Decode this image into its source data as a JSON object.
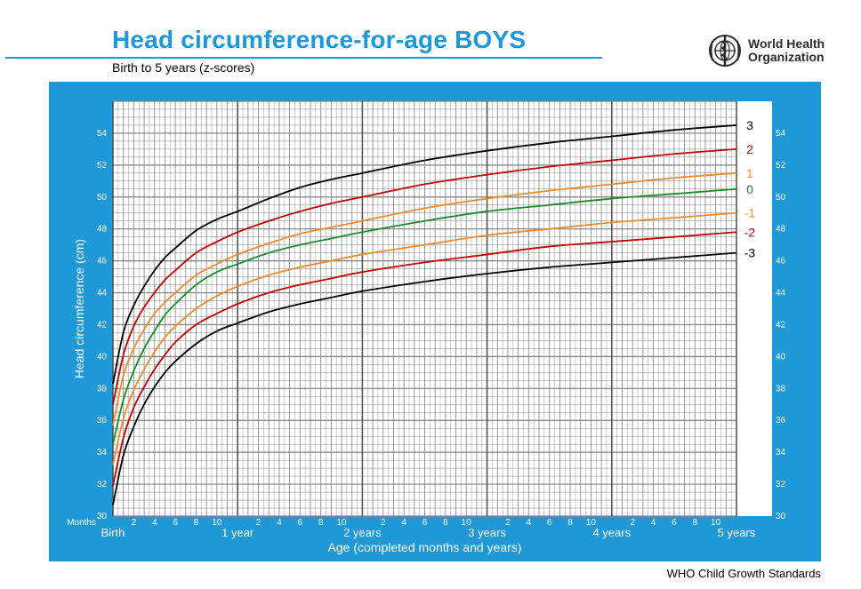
{
  "header": {
    "title": "Head circumference-for-age  BOYS",
    "subtitle": "Birth to 5 years (z-scores)",
    "org_line1": "World Health",
    "org_line2": "Organization",
    "logo_icon": "who-emblem-icon"
  },
  "footer": {
    "text": "WHO Child Growth Standards"
  },
  "colors": {
    "panel": "#1f98d8",
    "grid": "#7f7f7f",
    "z3": "#000000",
    "z2": "#c00000",
    "z1": "#f08a2a",
    "z0": "#1a8a2a"
  },
  "chart_data": {
    "type": "line",
    "title": "Head circumference-for-age  BOYS",
    "subtitle": "Birth to 5 years (z-scores)",
    "xlabel": "Age (completed months and years)",
    "ylabel": "Head circumference (cm)",
    "x_unit": "months",
    "xlim": [
      0,
      60
    ],
    "ylim": [
      30,
      56
    ],
    "y_ticks": [
      30,
      32,
      34,
      36,
      38,
      40,
      42,
      44,
      46,
      48,
      50,
      52,
      54
    ],
    "months_label": "Months",
    "x_year_labels": [
      {
        "month": 0,
        "label": "Birth"
      },
      {
        "month": 12,
        "label": "1 year"
      },
      {
        "month": 24,
        "label": "2 years"
      },
      {
        "month": 36,
        "label": "3 years"
      },
      {
        "month": 48,
        "label": "4 years"
      },
      {
        "month": 60,
        "label": "5 years"
      }
    ],
    "x_month_ticks": [
      "2",
      "4",
      "6",
      "8",
      "10"
    ],
    "grid": true,
    "x": [
      0,
      1,
      2,
      3,
      4,
      5,
      6,
      8,
      10,
      12,
      15,
      18,
      21,
      24,
      30,
      36,
      42,
      48,
      54,
      60
    ],
    "series": [
      {
        "name": "3",
        "color": "#000000",
        "values": [
          38.3,
          41.5,
          43.2,
          44.4,
          45.4,
          46.2,
          46.8,
          47.9,
          48.6,
          49.1,
          49.9,
          50.6,
          51.1,
          51.5,
          52.3,
          52.9,
          53.4,
          53.8,
          54.2,
          54.5
        ]
      },
      {
        "name": "2",
        "color": "#c00000",
        "values": [
          37.0,
          40.1,
          41.9,
          43.1,
          44.0,
          44.8,
          45.4,
          46.5,
          47.2,
          47.8,
          48.5,
          49.1,
          49.6,
          50.0,
          50.8,
          51.4,
          51.9,
          52.3,
          52.7,
          53.0
        ]
      },
      {
        "name": "1",
        "color": "#f08a2a",
        "values": [
          35.7,
          38.8,
          40.5,
          41.7,
          42.7,
          43.4,
          44.0,
          45.1,
          45.8,
          46.4,
          47.1,
          47.7,
          48.1,
          48.5,
          49.3,
          49.9,
          50.4,
          50.8,
          51.2,
          51.5
        ]
      },
      {
        "name": "0",
        "color": "#1a8a2a",
        "values": [
          34.5,
          37.3,
          39.1,
          40.5,
          41.6,
          42.6,
          43.3,
          44.5,
          45.3,
          45.8,
          46.5,
          47.0,
          47.4,
          47.8,
          48.5,
          49.1,
          49.5,
          49.9,
          50.2,
          50.5
        ]
      },
      {
        "name": "-1",
        "color": "#f08a2a",
        "values": [
          33.2,
          36.1,
          37.9,
          39.2,
          40.3,
          41.2,
          41.9,
          43.0,
          43.8,
          44.4,
          45.1,
          45.6,
          46.0,
          46.4,
          47.0,
          47.6,
          48.0,
          48.4,
          48.7,
          49.0
        ]
      },
      {
        "name": "-2",
        "color": "#c00000",
        "values": [
          31.9,
          34.9,
          36.8,
          38.1,
          39.2,
          40.1,
          40.9,
          42.0,
          42.7,
          43.3,
          44.0,
          44.5,
          44.9,
          45.3,
          45.9,
          46.4,
          46.9,
          47.2,
          47.5,
          47.8
        ]
      },
      {
        "name": "-3",
        "color": "#000000",
        "values": [
          30.7,
          33.8,
          35.6,
          37.0,
          38.1,
          39.0,
          39.7,
          40.8,
          41.6,
          42.1,
          42.8,
          43.3,
          43.7,
          44.1,
          44.7,
          45.2,
          45.6,
          45.9,
          46.2,
          46.5
        ]
      }
    ]
  }
}
